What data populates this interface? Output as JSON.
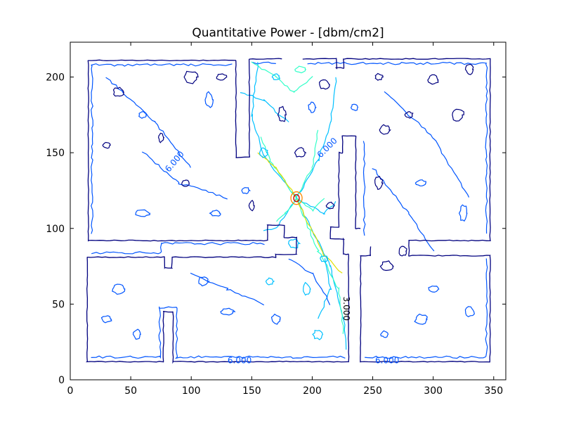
{
  "chart_data": {
    "type": "contour",
    "title": "Quantitative Power - [dbm/cm2]",
    "xlim": [
      0,
      360
    ],
    "ylim": [
      0,
      223
    ],
    "x_ticks": [
      0,
      50,
      100,
      150,
      200,
      250,
      300,
      350
    ],
    "y_ticks": [
      0,
      50,
      100,
      150,
      200
    ],
    "grid": false,
    "contour_labels": [
      {
        "text": "6.000",
        "x": 88,
        "y": 143
      },
      {
        "text": "6.000",
        "x": 214,
        "y": 152
      },
      {
        "text": "3.000",
        "x": 226,
        "y": 47
      },
      {
        "text": "6.000",
        "x": 140,
        "y": 11
      },
      {
        "text": "6.000",
        "x": 262,
        "y": 11
      }
    ],
    "source": {
      "x": 187,
      "y": 120
    },
    "walls": [
      [
        [
          14,
          81
        ],
        [
          78,
          81
        ],
        [
          78,
          74
        ],
        [
          84,
          74
        ],
        [
          84,
          81
        ],
        [
          170,
          81
        ],
        [
          170,
          83
        ],
        [
          187,
          83
        ],
        [
          187,
          94
        ],
        [
          177,
          94
        ],
        [
          177,
          102
        ],
        [
          163,
          102
        ],
        [
          163,
          92
        ],
        [
          15,
          92
        ],
        [
          15,
          211
        ],
        [
          137,
          211
        ],
        [
          137,
          147
        ],
        [
          148,
          147
        ],
        [
          148,
          212
        ],
        [
          175,
          212
        ]
      ],
      [
        [
          192,
          212
        ],
        [
          220,
          212
        ],
        [
          220,
          206
        ],
        [
          226,
          206
        ],
        [
          226,
          212
        ],
        [
          347,
          212
        ],
        [
          347,
          92
        ],
        [
          280,
          92
        ],
        [
          280,
          82
        ],
        [
          347,
          82
        ],
        [
          347,
          12
        ],
        [
          240,
          12
        ],
        [
          240,
          82
        ],
        [
          248,
          82
        ],
        [
          248,
          88
        ]
      ],
      [
        [
          14,
          81
        ],
        [
          14,
          12
        ],
        [
          77,
          12
        ],
        [
          77,
          45
        ],
        [
          85,
          45
        ],
        [
          85,
          12
        ],
        [
          230,
          12
        ],
        [
          230,
          83
        ],
        [
          226,
          83
        ],
        [
          226,
          93
        ],
        [
          215,
          93
        ],
        [
          215,
          101
        ],
        [
          222,
          101
        ],
        [
          222,
          150
        ],
        [
          225,
          150
        ],
        [
          225,
          161
        ],
        [
          236,
          161
        ],
        [
          236,
          100
        ],
        [
          240,
          100
        ]
      ]
    ],
    "colormap": {
      "outer": "#00007f",
      "low": "#0055ff",
      "mid": "#00c0ff",
      "teal": "#33ffc9",
      "yellow": "#e0e000",
      "orange": "#ff8800",
      "red": "#cc0000"
    },
    "blobs": [
      {
        "x": 40,
        "y": 190,
        "rx": 4,
        "ry": 3,
        "level": "outer"
      },
      {
        "x": 60,
        "y": 175,
        "rx": 3,
        "ry": 2,
        "level": "low"
      },
      {
        "x": 100,
        "y": 200,
        "rx": 5,
        "ry": 4,
        "level": "outer"
      },
      {
        "x": 115,
        "y": 185,
        "rx": 3,
        "ry": 5,
        "level": "low"
      },
      {
        "x": 125,
        "y": 200,
        "rx": 4,
        "ry": 2,
        "level": "outer"
      },
      {
        "x": 30,
        "y": 155,
        "rx": 3,
        "ry": 2,
        "level": "outer"
      },
      {
        "x": 75,
        "y": 160,
        "rx": 2,
        "ry": 3,
        "level": "outer"
      },
      {
        "x": 95,
        "y": 130,
        "rx": 3,
        "ry": 2,
        "level": "outer"
      },
      {
        "x": 120,
        "y": 110,
        "rx": 4,
        "ry": 2,
        "level": "low"
      },
      {
        "x": 60,
        "y": 110,
        "rx": 6,
        "ry": 2,
        "level": "low"
      },
      {
        "x": 255,
        "y": 200,
        "rx": 3,
        "ry": 2,
        "level": "outer"
      },
      {
        "x": 300,
        "y": 198,
        "rx": 4,
        "ry": 3,
        "level": "outer"
      },
      {
        "x": 330,
        "y": 205,
        "rx": 3,
        "ry": 3,
        "level": "outer"
      },
      {
        "x": 320,
        "y": 175,
        "rx": 5,
        "ry": 4,
        "level": "outer"
      },
      {
        "x": 260,
        "y": 165,
        "rx": 4,
        "ry": 3,
        "level": "outer"
      },
      {
        "x": 280,
        "y": 175,
        "rx": 3,
        "ry": 2,
        "level": "outer"
      },
      {
        "x": 255,
        "y": 130,
        "rx": 3,
        "ry": 4,
        "level": "outer"
      },
      {
        "x": 290,
        "y": 130,
        "rx": 4,
        "ry": 2,
        "level": "low"
      },
      {
        "x": 325,
        "y": 110,
        "rx": 3,
        "ry": 5,
        "level": "low"
      },
      {
        "x": 262,
        "y": 75,
        "rx": 5,
        "ry": 3,
        "level": "outer"
      },
      {
        "x": 275,
        "y": 85,
        "rx": 3,
        "ry": 3,
        "level": "outer"
      },
      {
        "x": 300,
        "y": 60,
        "rx": 4,
        "ry": 2,
        "level": "low"
      },
      {
        "x": 290,
        "y": 40,
        "rx": 5,
        "ry": 3,
        "level": "low"
      },
      {
        "x": 260,
        "y": 30,
        "rx": 3,
        "ry": 2,
        "level": "low"
      },
      {
        "x": 330,
        "y": 45,
        "rx": 4,
        "ry": 3,
        "level": "low"
      },
      {
        "x": 40,
        "y": 60,
        "rx": 5,
        "ry": 3,
        "level": "low"
      },
      {
        "x": 30,
        "y": 40,
        "rx": 4,
        "ry": 2,
        "level": "low"
      },
      {
        "x": 55,
        "y": 30,
        "rx": 3,
        "ry": 3,
        "level": "low"
      },
      {
        "x": 110,
        "y": 65,
        "rx": 4,
        "ry": 3,
        "level": "low"
      },
      {
        "x": 130,
        "y": 45,
        "rx": 5,
        "ry": 2,
        "level": "low"
      },
      {
        "x": 170,
        "y": 40,
        "rx": 4,
        "ry": 3,
        "level": "low"
      },
      {
        "x": 195,
        "y": 60,
        "rx": 3,
        "ry": 4,
        "level": "mid"
      },
      {
        "x": 205,
        "y": 30,
        "rx": 4,
        "ry": 3,
        "level": "mid"
      },
      {
        "x": 165,
        "y": 65,
        "rx": 3,
        "ry": 2,
        "level": "mid"
      },
      {
        "x": 170,
        "y": 200,
        "rx": 3,
        "ry": 2,
        "level": "mid"
      },
      {
        "x": 190,
        "y": 205,
        "rx": 4,
        "ry": 2,
        "level": "teal"
      },
      {
        "x": 160,
        "y": 150,
        "rx": 3,
        "ry": 3,
        "level": "mid"
      },
      {
        "x": 210,
        "y": 195,
        "rx": 4,
        "ry": 3,
        "level": "outer"
      },
      {
        "x": 235,
        "y": 180,
        "rx": 3,
        "ry": 2,
        "level": "low"
      },
      {
        "x": 175,
        "y": 175,
        "rx": 3,
        "ry": 5,
        "level": "outer"
      },
      {
        "x": 190,
        "y": 150,
        "rx": 4,
        "ry": 3,
        "level": "outer"
      },
      {
        "x": 200,
        "y": 180,
        "rx": 3,
        "ry": 3,
        "level": "low"
      },
      {
        "x": 145,
        "y": 125,
        "rx": 3,
        "ry": 2,
        "level": "low"
      },
      {
        "x": 150,
        "y": 115,
        "rx": 2,
        "ry": 3,
        "level": "outer"
      },
      {
        "x": 185,
        "y": 90,
        "rx": 4,
        "ry": 3,
        "level": "mid"
      },
      {
        "x": 210,
        "y": 80,
        "rx": 3,
        "ry": 2,
        "level": "mid"
      },
      {
        "x": 215,
        "y": 115,
        "rx": 3,
        "ry": 2,
        "level": "outer"
      }
    ]
  }
}
